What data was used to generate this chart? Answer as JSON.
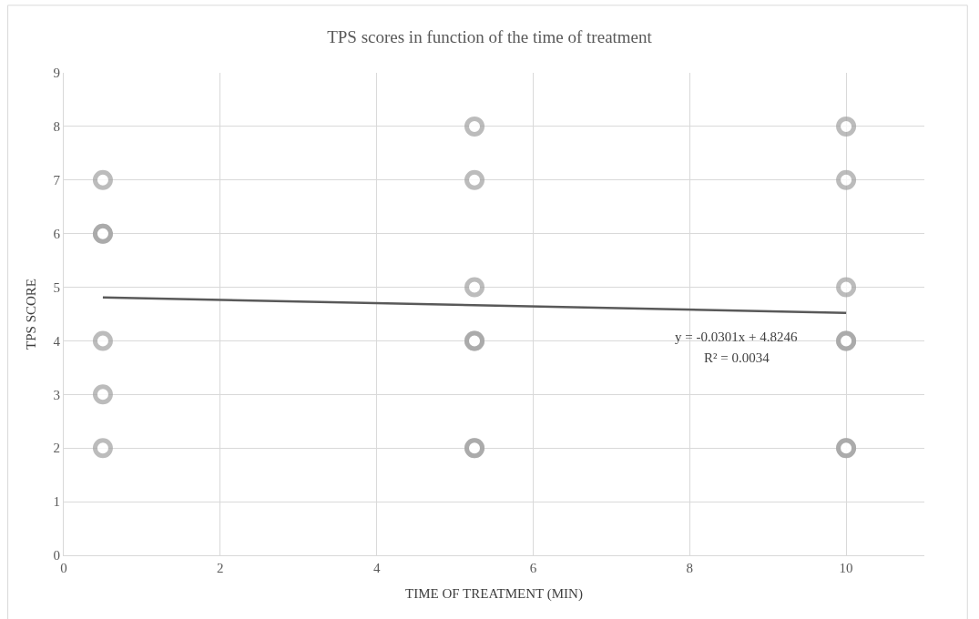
{
  "chart_data": {
    "type": "scatter",
    "title": "TPS scores in function of the time of treatment",
    "xlabel": "TIME OF TREATMENT (MIN)",
    "ylabel": "TPS SCORE",
    "series": [
      {
        "color": "#a6a6a6",
        "marker": "circle",
        "x": [
          0.5,
          0.5,
          0.5,
          0.5,
          0.5,
          0.5,
          5.25,
          5.25,
          5.25,
          5.25,
          5.25,
          5.25,
          5.25,
          10,
          10,
          10,
          10,
          10,
          10,
          10
        ],
        "values": [
          7,
          6,
          6,
          4,
          3,
          2,
          8,
          7,
          5,
          4,
          4,
          2,
          2,
          8,
          7,
          5,
          4,
          4,
          2,
          2
        ]
      },
      {
        "type": "line",
        "color": "#595959",
        "line_style": "solid",
        "x": [
          0.5,
          10
        ],
        "values": [
          4.81,
          4.52
        ]
      }
    ],
    "annotations": [
      "y = -0.0301x + 4.8246",
      "R² = 0.0034"
    ],
    "xlim": [
      0,
      11
    ],
    "xticks": [
      0,
      2,
      4,
      6,
      8,
      10
    ],
    "ylim": [
      0,
      9
    ],
    "yticks": [
      0,
      1,
      2,
      3,
      4,
      5,
      6,
      7,
      8,
      9
    ],
    "grid": true
  }
}
